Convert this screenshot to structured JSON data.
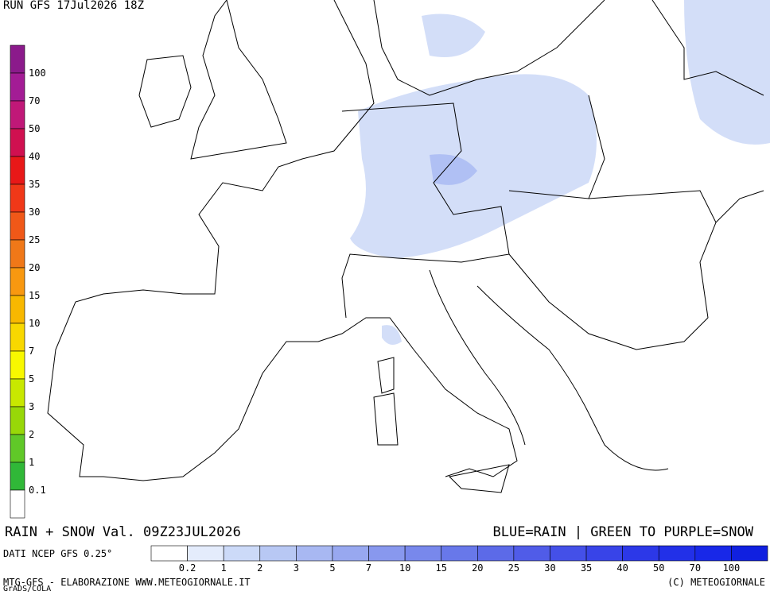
{
  "header": {
    "run": "RUN GFS 17Jul2026 18Z"
  },
  "footer": {
    "title": "RAIN + SNOW Val. 09Z23JUL2026",
    "key": "BLUE=RAIN | GREEN TO PURPLE=SNOW",
    "source": "DATI NCEP GFS 0.25°",
    "credit": "MTG-GFS - ELABORAZIONE WWW.METEOGIORNALE.IT",
    "copyright": "(C) METEOGIORNALE",
    "software": "GrADS/COLA"
  },
  "snow_scale": {
    "colors": [
      "#8b1a8b",
      "#a31c95",
      "#c01878",
      "#d01050",
      "#e81818",
      "#f03818",
      "#f05818",
      "#f07818",
      "#f89810",
      "#f8b800",
      "#f8d800",
      "#f8f800",
      "#c8e800",
      "#98d808",
      "#60c828",
      "#30b838",
      "#ffffff"
    ],
    "labels": [
      "100",
      "70",
      "50",
      "40",
      "35",
      "30",
      "25",
      "20",
      "15",
      "10",
      "7",
      "5",
      "3",
      "2",
      "1",
      "0.1"
    ]
  },
  "rain_scale": {
    "colors": [
      "#ffffff",
      "#e4ecfc",
      "#ccdaf8",
      "#b8c8f4",
      "#a8b8f2",
      "#98a8f0",
      "#8898ee",
      "#7888ec",
      "#6878ea",
      "#5c6ae8",
      "#505ce8",
      "#4450e8",
      "#3844e8",
      "#2c38e8",
      "#2230e8",
      "#1828e8",
      "#1020e0"
    ],
    "labels": [
      "0.2",
      "1",
      "2",
      "3",
      "5",
      "7",
      "10",
      "15",
      "20",
      "25",
      "30",
      "35",
      "40",
      "50",
      "70",
      "100"
    ]
  }
}
